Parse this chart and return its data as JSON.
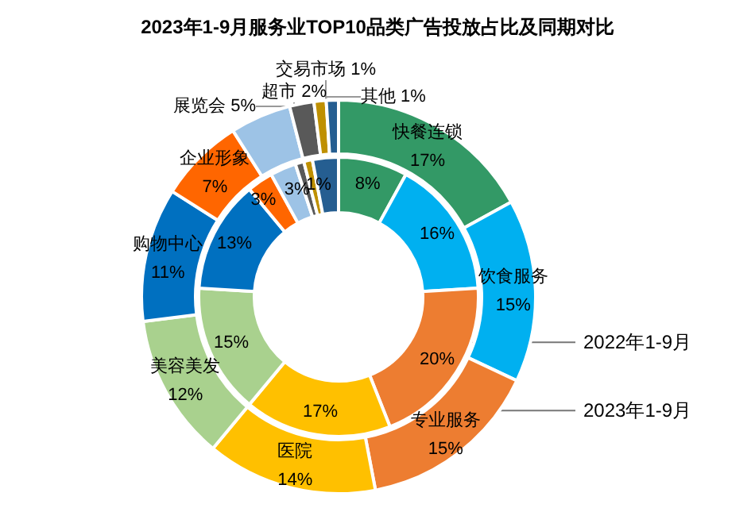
{
  "chart_data": {
    "type": "donut",
    "title": "2023年1-9月服务业TOP10品类广告投放占比及同期对比",
    "categories": [
      "快餐连锁",
      "饮食服务",
      "专业服务",
      "医院",
      "美容美发",
      "购物中心",
      "企业形象",
      "展览会",
      "超市",
      "交易市场",
      "其他"
    ],
    "colors": [
      "#339966",
      "#00b0f0",
      "#ed7d31",
      "#ffc000",
      "#a9d18e",
      "#0070c0",
      "#ff6600",
      "#9dc3e6",
      "#595959",
      "#bf9000",
      "#255e91"
    ],
    "series": [
      {
        "name": "2022年1-9月",
        "values": [
          8,
          16,
          20,
          17,
          15,
          13,
          3,
          3,
          1,
          1,
          3
        ],
        "value_labels": [
          "8%",
          "16%",
          "20%",
          "17%",
          "15%",
          "13%",
          "3%",
          "3%",
          "1%",
          null,
          null
        ]
      },
      {
        "name": "2023年1-9月",
        "values": [
          17,
          15,
          15,
          14,
          12,
          11,
          7,
          5,
          2,
          1,
          1
        ],
        "value_labels": [
          "17%",
          "15%",
          "15%",
          "14%",
          "12%",
          "11%",
          "7%",
          "5%",
          "2%",
          "1%",
          "1%"
        ]
      }
    ],
    "legend": false
  }
}
